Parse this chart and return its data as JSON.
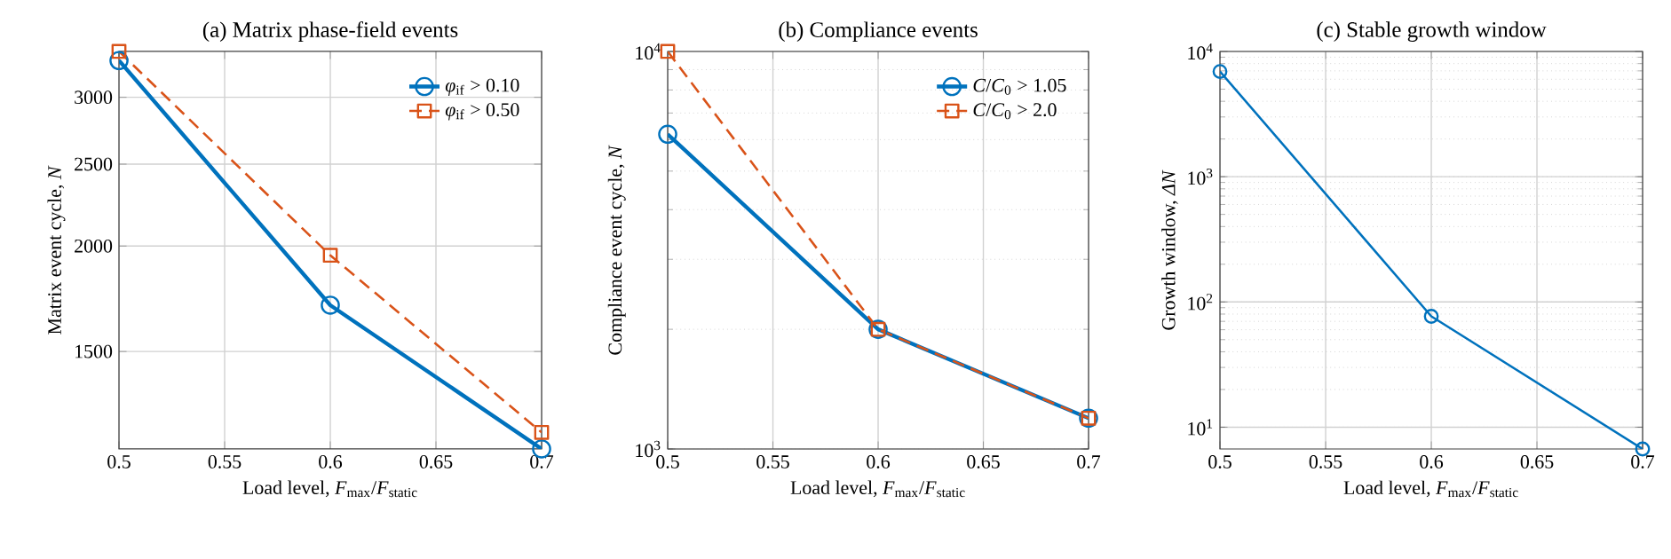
{
  "chart_data": [
    {
      "type": "line",
      "title": "(a)  Matrix phase-field events",
      "xlabel": "Load level, *F*$_{max}$/*F*$_{static}$",
      "ylabel": "Matrix event cycle, *N*",
      "x": [
        0.5,
        0.6,
        0.7
      ],
      "log": "y",
      "grid": true,
      "legend": "top right",
      "xlim": [
        0.5,
        0.7
      ],
      "xticks": [
        0.5,
        0.55,
        0.6,
        0.65,
        0.7
      ],
      "ylim": [
        1150,
        3400
      ],
      "yticks": [
        1500,
        2000,
        2500,
        3000
      ],
      "series": [
        {
          "name": "*φ*$_{if}$ > 0.10",
          "color": "#0072bd",
          "values": [
            3316,
            1702,
            1150
          ],
          "marker": "circle",
          "line_style": "solid"
        },
        {
          "name": "*φ*$_{if}$ > 0.50",
          "color": "#d95319",
          "values": [
            3400,
            1950,
            1203
          ],
          "marker": "square",
          "line_style": "dashed"
        }
      ]
    },
    {
      "type": "line",
      "title": "(b)    Compliance events",
      "xlabel": "Load level, *F*$_{max}$/*F*$_{static}$",
      "ylabel": "Compliance event cycle, *N*",
      "x": [
        0.5,
        0.6,
        0.7
      ],
      "log": "y",
      "grid": true,
      "legend": "top right",
      "xlim": [
        0.5,
        0.7
      ],
      "xticks": [
        0.5,
        0.55,
        0.6,
        0.65,
        0.7
      ],
      "ylim": [
        1000,
        10000
      ],
      "yticks": [
        {
          "value": 1000,
          "label": "10$^{3}$"
        },
        {
          "value": 10000,
          "label": "10$^{4}$"
        }
      ],
      "series": [
        {
          "name": "*C*/*C*$_{0}$ > 1.05",
          "color": "#0072bd",
          "values": [
            6190,
            2000,
            1195
          ],
          "marker": "circle",
          "line_style": "solid"
        },
        {
          "name": "*C*/*C*$_{0}$ > 2.0",
          "color": "#d95319",
          "values": [
            10000,
            2000,
            1195
          ],
          "marker": "square",
          "line_style": "dashed"
        }
      ]
    },
    {
      "type": "line",
      "title": "(c)  Stable growth window",
      "xlabel": "Load level, *F*$_{max}$/*F*$_{static}$",
      "ylabel": "Growth window, *ΔN*",
      "x": [
        0.5,
        0.6,
        0.7
      ],
      "log": "y",
      "grid": true,
      "xlim": [
        0.5,
        0.7
      ],
      "xticks": [
        0.5,
        0.55,
        0.6,
        0.65,
        0.7
      ],
      "ylim": [
        6.7,
        10000
      ],
      "yticks": [
        {
          "value": 10,
          "label": "10$^{1}$"
        },
        {
          "value": 100,
          "label": "10$^{2}$"
        },
        {
          "value": 1000,
          "label": "10$^{3}$"
        },
        {
          "value": 10000,
          "label": "10$^{4}$"
        }
      ],
      "series": [
        {
          "color": "#0072bd",
          "values": [
            6920,
            76.8,
            6.7
          ],
          "marker": "circle",
          "line_style": "solid"
        }
      ]
    }
  ]
}
